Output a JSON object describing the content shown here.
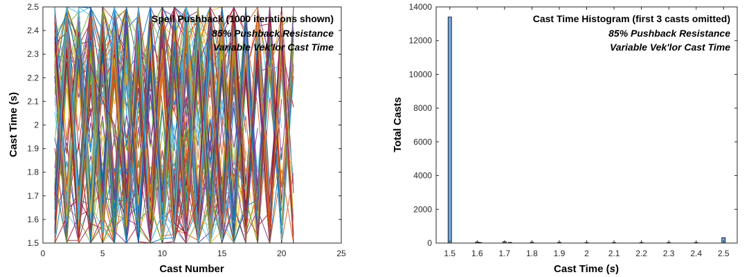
{
  "chart_data": [
    {
      "type": "line",
      "annotations": [
        "Spell Pushback (1000 iterations shown)",
        "85% Pushback Resistance",
        "Variable Vek'lor Cast Time"
      ],
      "xlabel": "Cast Number",
      "ylabel": "Cast Time (s)",
      "xlim": [
        0,
        25
      ],
      "ylim": [
        1.5,
        2.5
      ],
      "x_ticks": [
        "0",
        "5",
        "10",
        "15",
        "20",
        "25"
      ],
      "y_ticks": [
        "1.5",
        "1.6",
        "1.7",
        "1.8",
        "1.9",
        "2",
        "2.1",
        "2.2",
        "2.3",
        "2.4",
        "2.5"
      ],
      "iterations_shown": 1000,
      "x_range_of_series": [
        1,
        21
      ],
      "series_description": "many overlapping zig-zag series oscillating between 1.5 and 2.5",
      "grid": false,
      "colors": [
        "#0072BD",
        "#D95319",
        "#EDB120",
        "#7E2F8E",
        "#77AC30",
        "#4DBEEE",
        "#A2142F"
      ]
    },
    {
      "type": "bar",
      "annotations": [
        "Cast Time Histogram (first 3 casts omitted)",
        "85% Pushback Resistance",
        "Variable Vek'lor Cast Time"
      ],
      "xlabel_main": "Cast Time (",
      "xlabel_var": "s",
      "xlabel_end": ")",
      "ylabel": "Total Casts",
      "xlim": [
        1.45,
        2.55
      ],
      "ylim": [
        0,
        14000
      ],
      "x_ticks": [
        "1.5",
        "1.6",
        "1.7",
        "1.8",
        "1.9",
        "2",
        "2.1",
        "2.2",
        "2.3",
        "2.4",
        "2.5"
      ],
      "y_ticks": [
        "0",
        "2000",
        "4000",
        "6000",
        "8000",
        "10000",
        "12000",
        "14000"
      ],
      "bins": [
        {
          "x": 1.5,
          "value": 13400
        },
        {
          "x": 1.6,
          "value": 60
        },
        {
          "x": 1.61,
          "value": 30
        },
        {
          "x": 1.7,
          "value": 80
        },
        {
          "x": 1.72,
          "value": 40
        },
        {
          "x": 1.8,
          "value": 45
        },
        {
          "x": 1.9,
          "value": 40
        },
        {
          "x": 2.0,
          "value": 30
        },
        {
          "x": 2.1,
          "value": 20
        },
        {
          "x": 2.2,
          "value": 10
        },
        {
          "x": 2.3,
          "value": 8
        },
        {
          "x": 2.4,
          "value": 6
        },
        {
          "x": 2.5,
          "value": 320
        }
      ],
      "bar_color": "#73A5DA",
      "bar_edge": "#000000",
      "grid": false
    }
  ]
}
